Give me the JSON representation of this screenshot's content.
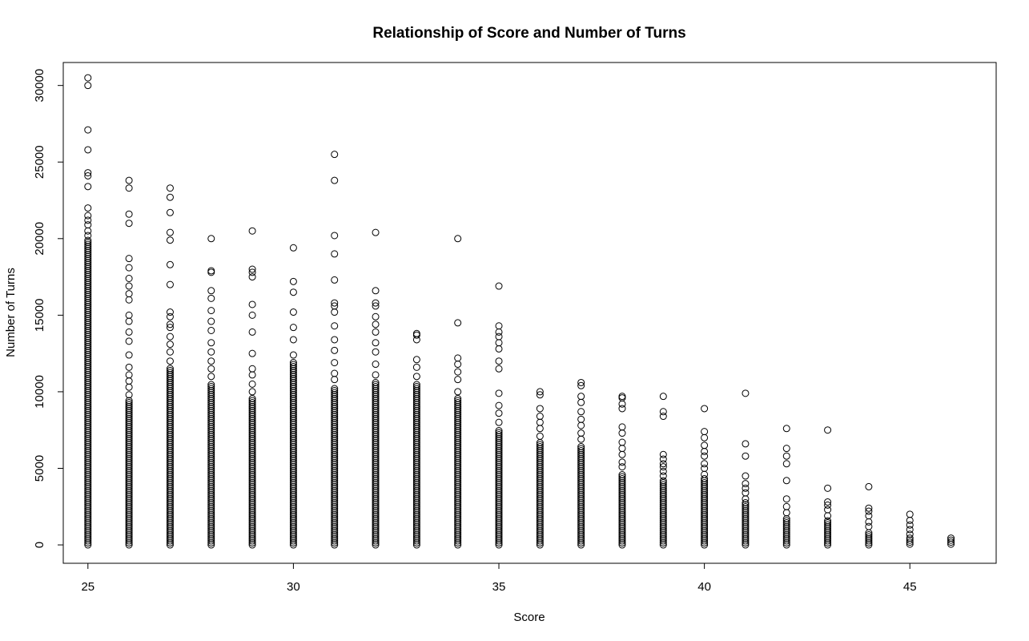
{
  "chart_data": {
    "type": "scatter",
    "title": "Relationship of Score and Number of Turns",
    "xlabel": "Score",
    "ylabel": "Number of Turns",
    "xlim": [
      24.4,
      47.1
    ],
    "ylim": [
      -1200,
      31500
    ],
    "xticks": [
      25,
      30,
      35,
      40,
      45
    ],
    "yticks": [
      0,
      5000,
      10000,
      15000,
      20000,
      25000,
      30000
    ],
    "grid": false,
    "legend": "none",
    "marker": "open-circle",
    "colors": {
      "marker": "#000000",
      "axis": "#000000",
      "background": "#ffffff"
    },
    "columns": [
      {
        "x": 25,
        "ymin": 0,
        "ymax": 20000,
        "outliers": [
          20200,
          20500,
          20900,
          21200,
          21500,
          22000,
          23400,
          24100,
          24300,
          25800,
          27100,
          30000,
          30500
        ]
      },
      {
        "x": 26,
        "ymin": 0,
        "ymax": 9500,
        "outliers": [
          9800,
          10300,
          10700,
          11100,
          11600,
          12400,
          13300,
          13900,
          14600,
          15000,
          16000,
          16400,
          16900,
          17400,
          18100,
          18700,
          21000,
          21600,
          23300,
          23800
        ]
      },
      {
        "x": 27,
        "ymin": 0,
        "ymax": 11600,
        "outliers": [
          12000,
          12600,
          13100,
          13600,
          14200,
          14400,
          14900,
          15200,
          17000,
          18300,
          19900,
          20400,
          21700,
          22700,
          23300
        ]
      },
      {
        "x": 28,
        "ymin": 0,
        "ymax": 10500,
        "outliers": [
          11000,
          11500,
          12000,
          12600,
          13200,
          14000,
          14600,
          15300,
          16100,
          16600,
          17800,
          17900,
          20000
        ]
      },
      {
        "x": 29,
        "ymin": 0,
        "ymax": 9600,
        "outliers": [
          10000,
          10500,
          11100,
          11500,
          12500,
          13900,
          15000,
          15700,
          17500,
          17800,
          18000,
          20500
        ]
      },
      {
        "x": 30,
        "ymin": 0,
        "ymax": 12000,
        "outliers": [
          12400,
          13400,
          14200,
          15200,
          16500,
          17200,
          19400
        ]
      },
      {
        "x": 31,
        "ymin": 0,
        "ymax": 10300,
        "outliers": [
          10800,
          11200,
          11900,
          12700,
          13400,
          14300,
          15200,
          15600,
          15800,
          17300,
          19000,
          20200,
          23800,
          25500
        ]
      },
      {
        "x": 32,
        "ymin": 0,
        "ymax": 10700,
        "outliers": [
          11100,
          11800,
          12600,
          13200,
          13900,
          14400,
          14900,
          15600,
          15800,
          16600,
          20400
        ]
      },
      {
        "x": 33,
        "ymin": 0,
        "ymax": 10500,
        "outliers": [
          11000,
          11600,
          12100,
          13400,
          13700,
          13800
        ]
      },
      {
        "x": 34,
        "ymin": 0,
        "ymax": 9600,
        "outliers": [
          10000,
          10800,
          11300,
          11800,
          12200,
          14500,
          20000
        ]
      },
      {
        "x": 35,
        "ymin": 0,
        "ymax": 7500,
        "outliers": [
          8000,
          8600,
          9100,
          9900,
          11500,
          12000,
          12800,
          13200,
          13600,
          13900,
          14300,
          16900
        ]
      },
      {
        "x": 36,
        "ymin": 0,
        "ymax": 6800,
        "outliers": [
          7100,
          7600,
          8000,
          8400,
          8900,
          9800,
          10000
        ]
      },
      {
        "x": 37,
        "ymin": 0,
        "ymax": 6500,
        "outliers": [
          6900,
          7300,
          7800,
          8200,
          8700,
          9300,
          9700,
          10400,
          10600
        ]
      },
      {
        "x": 38,
        "ymin": 0,
        "ymax": 4600,
        "outliers": [
          5100,
          5400,
          5900,
          6300,
          6700,
          7300,
          7700,
          8900,
          9200,
          9600,
          9700
        ]
      },
      {
        "x": 39,
        "ymin": 0,
        "ymax": 4200,
        "outliers": [
          4500,
          4800,
          5100,
          5300,
          5600,
          5900,
          8400,
          8700,
          9700
        ]
      },
      {
        "x": 40,
        "ymin": 0,
        "ymax": 4400,
        "outliers": [
          4600,
          5000,
          5300,
          5800,
          6100,
          6500,
          7000,
          7400,
          8900
        ]
      },
      {
        "x": 41,
        "ymin": 0,
        "ymax": 2800,
        "outliers": [
          3000,
          3400,
          3700,
          4000,
          4500,
          5800,
          6600,
          9900
        ]
      },
      {
        "x": 42,
        "ymin": 0,
        "ymax": 1800,
        "outliers": [
          2100,
          2500,
          3000,
          4200,
          5300,
          5800,
          6300,
          7600
        ]
      },
      {
        "x": 43,
        "ymin": 0,
        "ymax": 1600,
        "outliers": [
          1900,
          2300,
          2600,
          2800,
          3700,
          7500
        ]
      },
      {
        "x": 44,
        "ymin": 0,
        "ymax": 900,
        "outliers": [
          1200,
          1500,
          1900,
          2200,
          2400,
          3800
        ]
      },
      {
        "x": 45,
        "ymin": 50,
        "ymax": 500,
        "outliers": [
          700,
          1000,
          1300,
          1600,
          2000
        ]
      },
      {
        "x": 46,
        "ymin": 50,
        "ymax": 450,
        "outliers": []
      }
    ]
  }
}
